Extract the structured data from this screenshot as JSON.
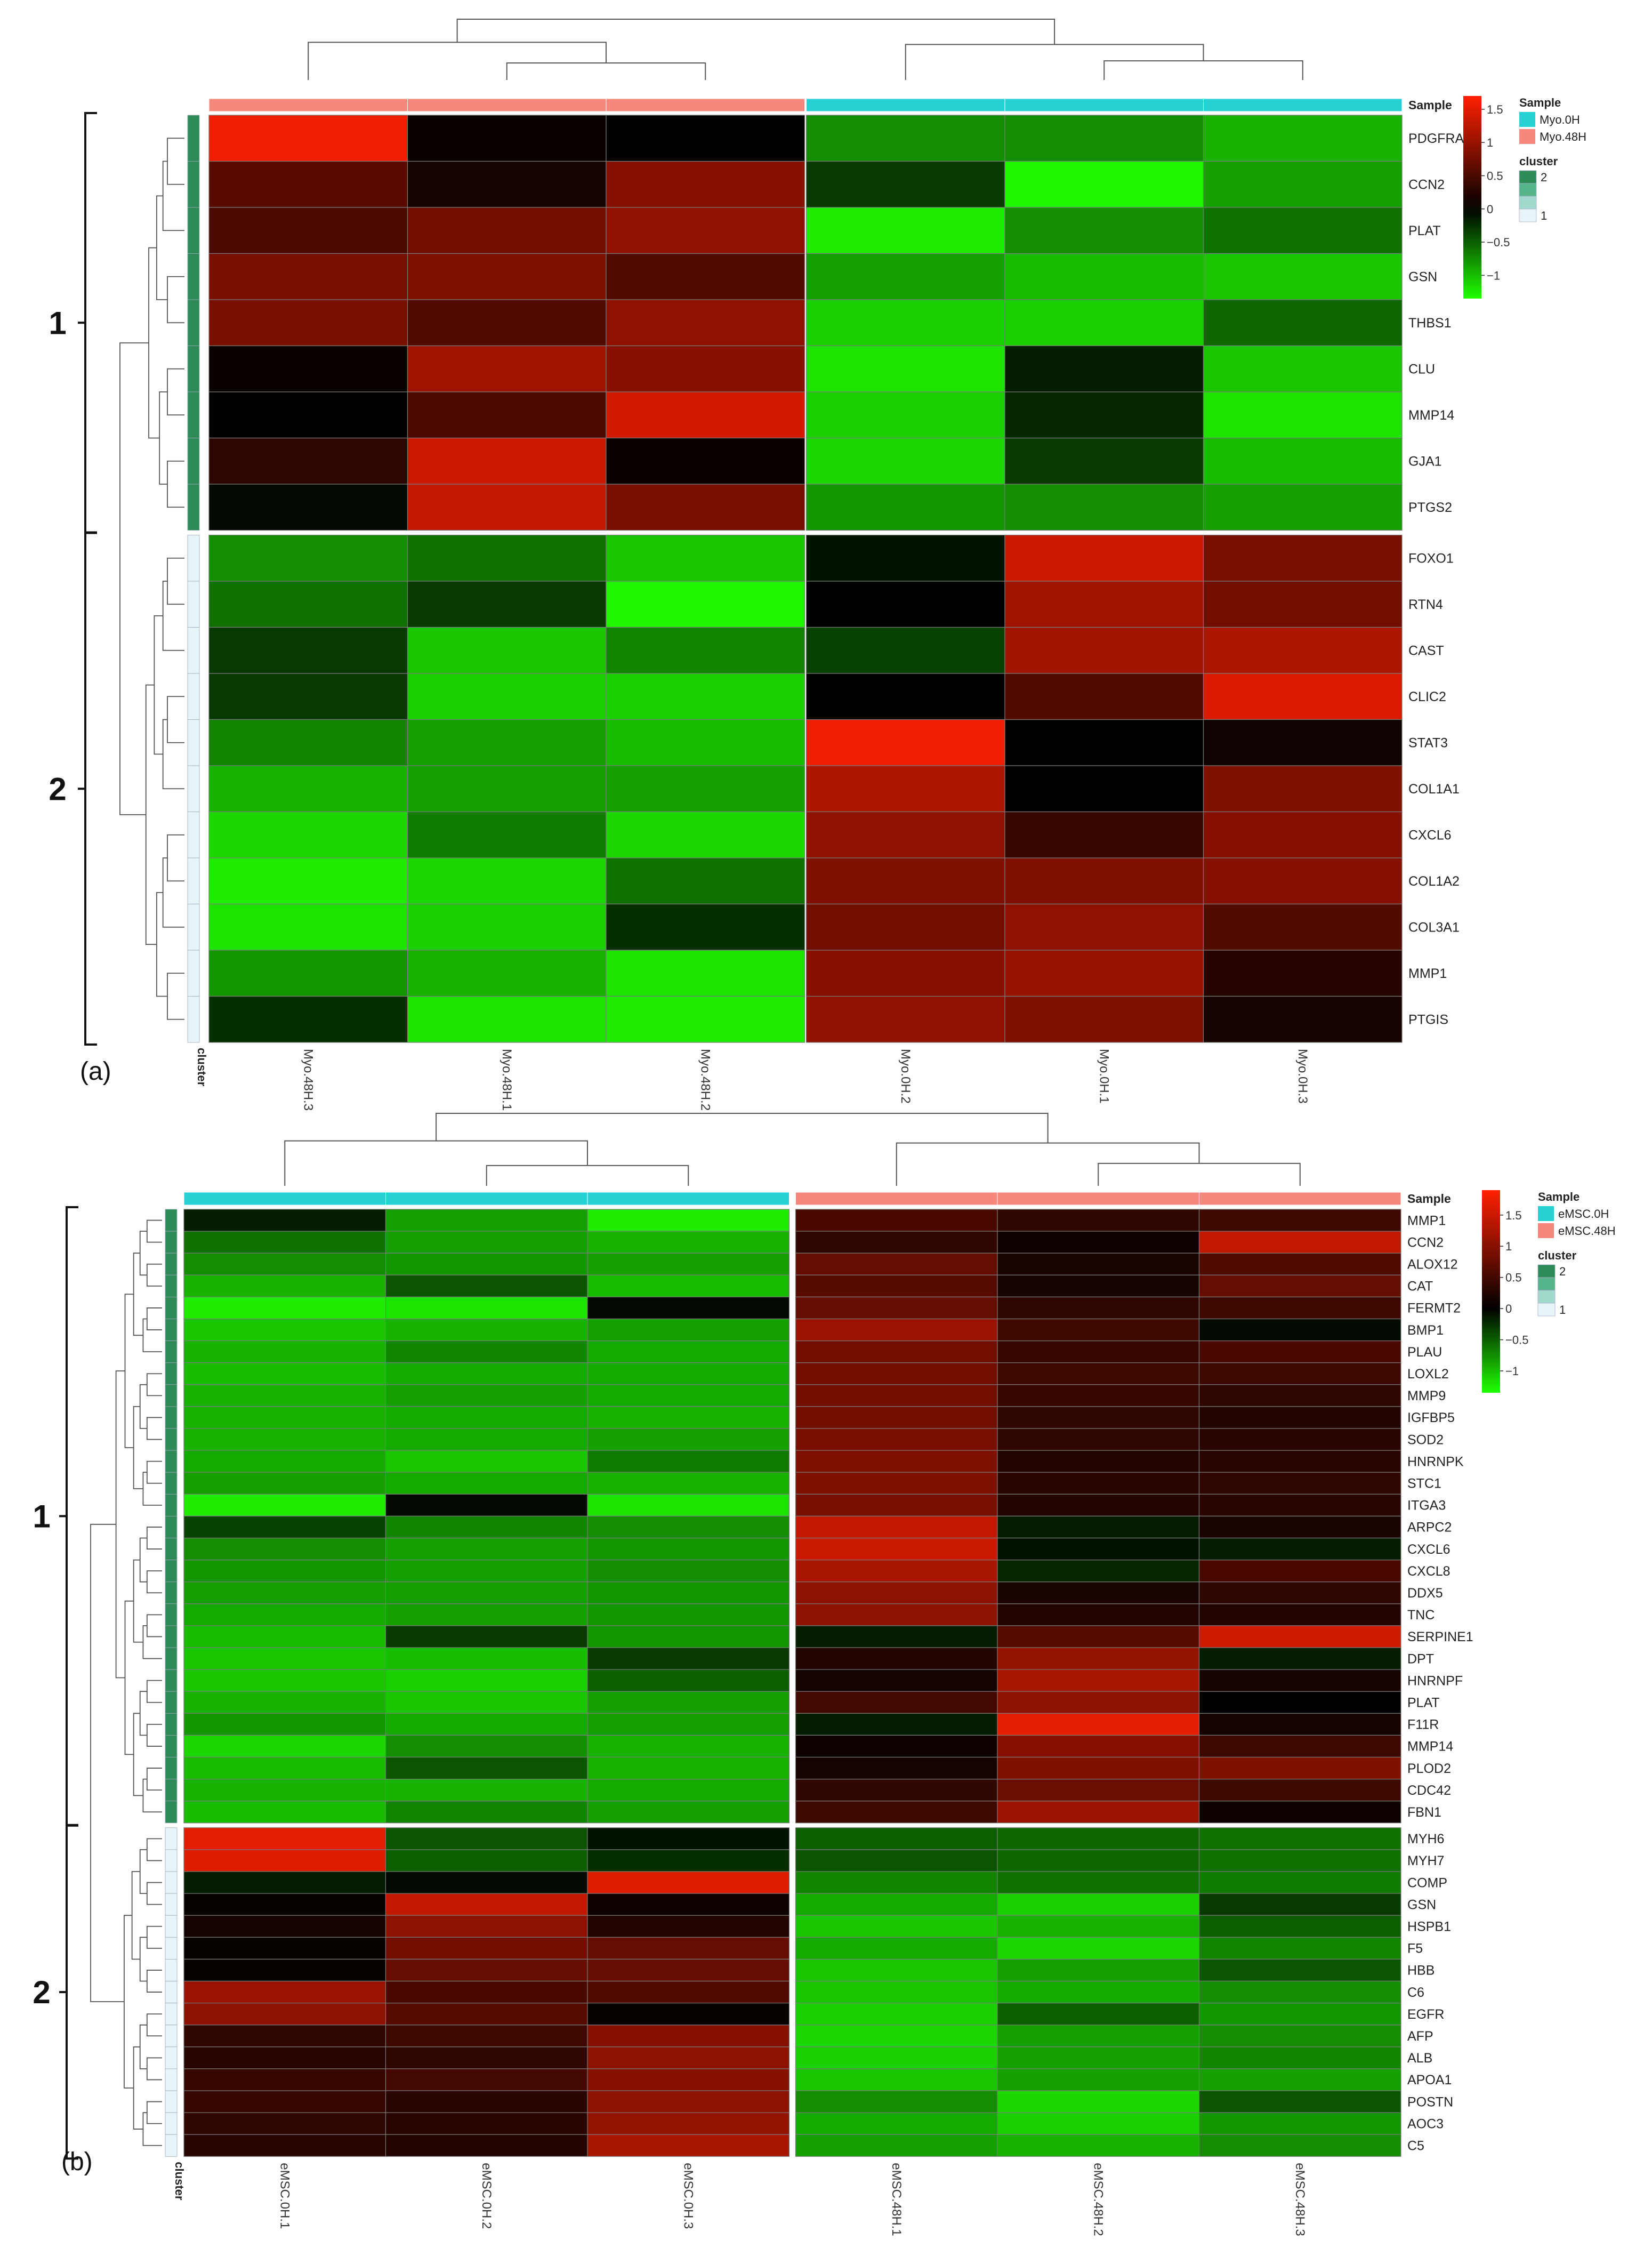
{
  "chart_data": [
    {
      "type": "heatmap",
      "panel_label": "(a)",
      "rows": [
        "PDGFRA",
        "CCN2",
        "PLAT",
        "GSN",
        "THBS1",
        "CLU",
        "MMP14",
        "GJA1",
        "PTGS2",
        "FOXO1",
        "RTN4",
        "CAST",
        "CLIC2",
        "STAT3",
        "COL1A1",
        "CXCL6",
        "COL1A2",
        "COL3A1",
        "MMP1",
        "PTGIS"
      ],
      "row_cluster": [
        2,
        2,
        2,
        2,
        2,
        2,
        2,
        2,
        2,
        1,
        1,
        1,
        1,
        1,
        1,
        1,
        1,
        1,
        1,
        1
      ],
      "row_group_labels": [
        {
          "label": "1",
          "from": 0,
          "to": 8
        },
        {
          "label": "2",
          "from": 9,
          "to": 19
        }
      ],
      "columns": [
        "Myo.48H.3",
        "Myo.48H.1",
        "Myo.48H.2",
        "Myo.0H.2",
        "Myo.0H.1",
        "Myo.0H.3"
      ],
      "column_sample": [
        "Myo.48H",
        "Myo.48H",
        "Myo.48H",
        "Myo.0H",
        "Myo.0H",
        "Myo.0H"
      ],
      "values": [
        [
          1.6,
          0.05,
          0.0,
          -0.75,
          -0.75,
          -0.95
        ],
        [
          0.6,
          0.15,
          0.9,
          -0.3,
          -1.3,
          -0.85
        ],
        [
          0.5,
          0.75,
          0.95,
          -1.25,
          -0.75,
          -0.6
        ],
        [
          0.8,
          0.85,
          0.55,
          -0.85,
          -1.0,
          -1.05
        ],
        [
          0.8,
          0.55,
          0.95,
          -1.1,
          -1.1,
          -0.55
        ],
        [
          0.05,
          1.05,
          0.9,
          -1.2,
          -0.15,
          -1.05
        ],
        [
          0.0,
          0.5,
          1.4,
          -1.1,
          -0.2,
          -1.2
        ],
        [
          0.3,
          1.35,
          0.05,
          -1.15,
          -0.3,
          -1.0
        ],
        [
          -0.05,
          1.3,
          0.8,
          -0.8,
          -0.75,
          -0.85
        ],
        [
          -0.75,
          -0.6,
          -1.05,
          -0.1,
          1.35,
          0.8
        ],
        [
          -0.6,
          -0.3,
          -1.3,
          0.0,
          1.05,
          0.75
        ],
        [
          -0.3,
          -1.05,
          -0.7,
          -0.35,
          1.05,
          1.15
        ],
        [
          -0.3,
          -1.1,
          -1.1,
          0.0,
          0.55,
          1.45
        ],
        [
          -0.7,
          -0.85,
          -1.0,
          1.6,
          0.0,
          0.1
        ],
        [
          -0.95,
          -0.85,
          -0.85,
          1.15,
          0.0,
          0.85
        ],
        [
          -1.15,
          -0.65,
          -1.15,
          0.95,
          0.35,
          0.9
        ],
        [
          -1.25,
          -1.15,
          -0.6,
          0.85,
          0.85,
          0.9
        ],
        [
          -1.2,
          -1.1,
          -0.25,
          0.75,
          0.95,
          0.55
        ],
        [
          -0.8,
          -0.95,
          -1.2,
          0.9,
          1.0,
          0.25
        ],
        [
          -0.25,
          -1.2,
          -1.25,
          0.95,
          0.85,
          0.15
        ]
      ],
      "sample_legend_title": "Sample",
      "sample_legend": [
        {
          "name": "Myo.0H",
          "color": "#26D1D4"
        },
        {
          "name": "Myo.48H",
          "color": "#F5877C"
        }
      ],
      "cluster_legend_title": "cluster",
      "cluster_legend_ticks": [
        "2",
        "1"
      ],
      "cluster_colors": {
        "1": "#E8F5F8",
        "2": "#2E8B57"
      },
      "color_scale_ticks": [
        "1.5",
        "1",
        "0.5",
        "0",
        "−0.5",
        "−1"
      ],
      "color_range": [
        -1.35,
        1.7
      ],
      "header_label": "Sample",
      "cluster_axis_label": "cluster"
    },
    {
      "type": "heatmap",
      "panel_label": "(b)",
      "rows": [
        "MMP1",
        "CCN2",
        "ALOX12",
        "CAT",
        "FERMT2",
        "BMP1",
        "PLAU",
        "LOXL2",
        "MMP9",
        "IGFBP5",
        "SOD2",
        "HNRNPK",
        "STC1",
        "ITGA3",
        "ARPC2",
        "CXCL6",
        "CXCL8",
        "DDX5",
        "TNC",
        "SERPINE1",
        "DPT",
        "HNRNPF",
        "PLAT",
        "F11R",
        "MMP14",
        "PLOD2",
        "CDC42",
        "FBN1",
        "MYH6",
        "MYH7",
        "COMP",
        "GSN",
        "HSPB1",
        "F5",
        "HBB",
        "C6",
        "EGFR",
        "AFP",
        "ALB",
        "APOA1",
        "POSTN",
        "AOC3",
        "C5"
      ],
      "row_cluster": [
        2,
        2,
        2,
        2,
        2,
        2,
        2,
        2,
        2,
        2,
        2,
        2,
        2,
        2,
        2,
        2,
        2,
        2,
        2,
        2,
        2,
        2,
        2,
        2,
        2,
        2,
        2,
        2,
        1,
        1,
        1,
        1,
        1,
        1,
        1,
        1,
        1,
        1,
        1,
        1,
        1,
        1,
        1
      ],
      "row_group_labels": [
        {
          "label": "1",
          "from": 0,
          "to": 27
        },
        {
          "label": "2",
          "from": 28,
          "to": 42
        }
      ],
      "columns": [
        "eMSC.0H.1",
        "eMSC.0H.2",
        "eMSC.0H.3",
        "eMSC.48H.1",
        "eMSC.48H.2",
        "eMSC.48H.3"
      ],
      "column_sample": [
        "eMSC.0H",
        "eMSC.0H",
        "eMSC.0H",
        "eMSC.48H",
        "eMSC.48H",
        "eMSC.48H"
      ],
      "values": [
        [
          -0.15,
          -0.85,
          -1.25,
          0.55,
          0.35,
          0.45
        ],
        [
          -0.6,
          -0.85,
          -0.95,
          0.35,
          0.1,
          1.45
        ],
        [
          -0.75,
          -0.8,
          -0.85,
          0.75,
          0.2,
          0.6
        ],
        [
          -0.95,
          -0.45,
          -1.0,
          0.65,
          0.15,
          0.75
        ],
        [
          -1.25,
          -1.2,
          -0.05,
          0.75,
          0.35,
          0.45
        ],
        [
          -1.05,
          -0.95,
          -0.85,
          1.15,
          0.45,
          -0.05
        ],
        [
          -0.95,
          -0.7,
          -0.9,
          0.85,
          0.4,
          0.55
        ],
        [
          -1.0,
          -0.9,
          -0.9,
          0.85,
          0.45,
          0.45
        ],
        [
          -0.95,
          -0.85,
          -0.9,
          0.85,
          0.4,
          0.35
        ],
        [
          -0.95,
          -0.9,
          -0.95,
          0.85,
          0.35,
          0.25
        ],
        [
          -0.95,
          -0.9,
          -0.85,
          0.9,
          0.35,
          0.3
        ],
        [
          -0.9,
          -1.05,
          -0.65,
          0.95,
          0.25,
          0.3
        ],
        [
          -0.85,
          -0.9,
          -0.95,
          0.95,
          0.3,
          0.35
        ],
        [
          -1.25,
          -0.05,
          -1.2,
          0.9,
          0.25,
          0.3
        ],
        [
          -0.35,
          -0.7,
          -0.75,
          1.45,
          -0.15,
          0.2
        ],
        [
          -0.75,
          -0.85,
          -0.8,
          1.5,
          -0.1,
          -0.15
        ],
        [
          -0.8,
          -0.85,
          -0.75,
          1.25,
          -0.2,
          0.55
        ],
        [
          -0.85,
          -0.85,
          -0.8,
          1.05,
          0.2,
          0.35
        ],
        [
          -0.9,
          -0.85,
          -0.8,
          1.05,
          0.25,
          0.25
        ],
        [
          -1.0,
          -0.3,
          -0.8,
          -0.15,
          0.65,
          1.55
        ],
        [
          -1.05,
          -1.0,
          -0.3,
          0.25,
          1.1,
          -0.15
        ],
        [
          -1.05,
          -1.1,
          -0.5,
          0.15,
          1.25,
          0.15
        ],
        [
          -0.95,
          -1.05,
          -0.85,
          0.5,
          1.05,
          0.0
        ],
        [
          -0.8,
          -0.9,
          -0.85,
          -0.15,
          1.7,
          0.15
        ],
        [
          -1.15,
          -0.75,
          -0.95,
          0.1,
          1.0,
          0.45
        ],
        [
          -1.0,
          -0.45,
          -0.95,
          0.15,
          0.95,
          0.95
        ],
        [
          -0.95,
          -0.95,
          -0.9,
          0.35,
          0.8,
          0.45
        ],
        [
          -1.0,
          -0.7,
          -0.85,
          0.45,
          1.15,
          0.1
        ],
        [
          1.7,
          -0.45,
          -0.1,
          -0.5,
          -0.55,
          -0.6
        ],
        [
          1.65,
          -0.5,
          -0.25,
          -0.45,
          -0.55,
          -0.6
        ],
        [
          -0.15,
          -0.05,
          1.65,
          -0.7,
          -0.6,
          -0.65
        ],
        [
          0.05,
          1.45,
          0.1,
          -0.9,
          -1.1,
          -0.3
        ],
        [
          0.15,
          1.05,
          0.25,
          -1.05,
          -0.95,
          -0.5
        ],
        [
          0.05,
          0.85,
          0.75,
          -0.9,
          -1.15,
          -0.7
        ],
        [
          0.05,
          0.75,
          0.75,
          -1.05,
          -0.85,
          -0.45
        ],
        [
          1.15,
          0.55,
          0.6,
          -1.05,
          -0.9,
          -0.75
        ],
        [
          1.05,
          0.65,
          0.05,
          -1.1,
          -0.5,
          -0.8
        ],
        [
          0.35,
          0.45,
          1.0,
          -1.15,
          -0.85,
          -0.75
        ],
        [
          0.3,
          0.35,
          1.05,
          -1.1,
          -0.85,
          -0.7
        ],
        [
          0.4,
          0.5,
          1.0,
          -1.05,
          -0.85,
          -0.85
        ],
        [
          0.4,
          0.3,
          1.05,
          -0.75,
          -1.15,
          -0.45
        ],
        [
          0.35,
          0.3,
          1.1,
          -0.9,
          -1.1,
          -0.8
        ],
        [
          0.3,
          0.25,
          1.25,
          -0.85,
          -0.95,
          -0.75
        ]
      ],
      "sample_legend_title": "Sample",
      "sample_legend": [
        {
          "name": "eMSC.0H",
          "color": "#26D1D4"
        },
        {
          "name": "eMSC.48H",
          "color": "#F5877C"
        }
      ],
      "cluster_legend_title": "cluster",
      "cluster_legend_ticks": [
        "2",
        "1"
      ],
      "cluster_colors": {
        "1": "#E8F5F8",
        "2": "#2E8B57"
      },
      "color_scale_ticks": [
        "1.5",
        "1",
        "0.5",
        "0",
        "−0.5",
        "−1"
      ],
      "color_range": [
        -1.35,
        1.9
      ],
      "header_label": "Sample",
      "cluster_axis_label": "cluster"
    }
  ]
}
